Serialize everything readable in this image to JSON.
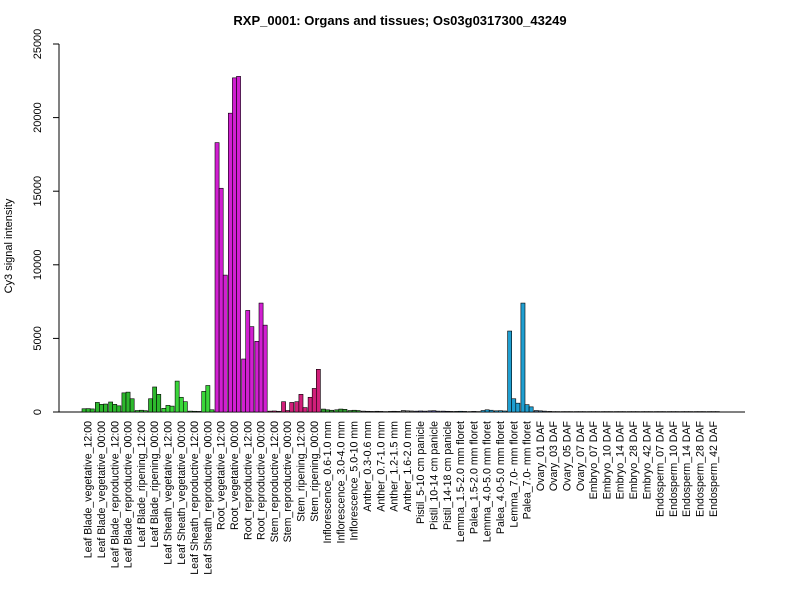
{
  "chart_data": {
    "type": "bar",
    "title": "RXP_0001: Organs and tissues; Os03g0317300_43249",
    "ylabel": "Cy3 signal intensity",
    "xlabel": "",
    "ylim": [
      0,
      25000
    ],
    "yticks": [
      0,
      5000,
      10000,
      15000,
      20000,
      25000
    ],
    "grid": false,
    "legend": "none",
    "categories": [
      "Leaf Blade_vegetative_12:00",
      "Leaf Blade_vegetative_00:00",
      "Leaf Blade_reproductive_12:00",
      "Leaf Blade_reproductive_00:00",
      "Leaf Blade_ripening_12:00",
      "Leaf Blade_ripening_00:00",
      "Leaf Sheath_vegetative_12:00",
      "Leaf Sheath_vegetative_00:00",
      "Leaf Sheath_reproductive_12:00",
      "Leaf Sheath_reproductive_00:00",
      "Root_vegetative_12:00",
      "Root_vegetative_00:00",
      "Root_reproductive_12:00",
      "Root_reproductive_00:00",
      "Stem_reproductive_12:00",
      "Stem_reproductive_00:00",
      "Stem_ripening_12:00",
      "Stem_ripening_00:00",
      "Inflorescence_0.6-1.0 mm",
      "Inflorescence_3.0-4.0 mm",
      "Inflorescence_5.0-10 mm",
      "Anther_0.3-0.6 mm",
      "Anther_0.7-1.0 mm",
      "Anther_1.2-1.5 mm",
      "Anther_1.6-2.0 mm",
      "Pistil_5-10 cm panicle",
      "Pistil_10-14 cm panicle",
      "Pistil_14-18 cm panicle",
      "Lemma_1.5-2.0 mm floret",
      "Palea_1.5-2.0 mm floret",
      "Lemma_4.0-5.0 mm floret",
      "Palea_4.0-5.0 mm floret",
      "Lemma_7.0- mm floret",
      "Palea_7.0- mm floret",
      "Ovary_01 DAF",
      "Ovary_03 DAF",
      "Ovary_05 DAF",
      "Ovary_07 DAF",
      "Embryo_07 DAF",
      "Embryo_10 DAF",
      "Embryo_14 DAF",
      "Embryo_28 DAF",
      "Embryo_42 DAF",
      "Endosperm_07 DAF",
      "Endosperm_10 DAF",
      "Endosperm_14 DAF",
      "Endosperm_28 DAF",
      "Endosperm_42 DAF"
    ],
    "values": [
      [
        220,
        230,
        210
      ],
      [
        650,
        520,
        540
      ],
      [
        680,
        520,
        420
      ],
      [
        1300,
        1350,
        900
      ],
      [
        100,
        120,
        90
      ],
      [
        900,
        1700,
        1200
      ],
      [
        250,
        450,
        400
      ],
      [
        2100,
        1000,
        700
      ],
      [
        60,
        50,
        40
      ],
      [
        1400,
        1800,
        150
      ],
      [
        18300,
        15200,
        9300
      ],
      [
        20300,
        22700,
        22800
      ],
      [
        3600,
        6900,
        5800
      ],
      [
        4800,
        7400,
        5900
      ],
      [
        60,
        70,
        50
      ],
      [
        700,
        100,
        650
      ],
      [
        700,
        1200,
        300
      ],
      [
        1000,
        1600,
        2900
      ],
      [
        200,
        150,
        120
      ],
      [
        150,
        200,
        180
      ],
      [
        100,
        120,
        100
      ],
      [
        60,
        50,
        40
      ],
      [
        50,
        40,
        30
      ],
      [
        40,
        50,
        40
      ],
      [
        100,
        80,
        70
      ],
      [
        60,
        70,
        60
      ],
      [
        80,
        90,
        60
      ],
      [
        60,
        50,
        40
      ],
      [
        40,
        50,
        40
      ],
      [
        30,
        40,
        30
      ],
      [
        100,
        150,
        120
      ],
      [
        80,
        90,
        70
      ],
      [
        5500,
        900,
        600
      ],
      [
        7400,
        500,
        350
      ],
      [
        100,
        80,
        60
      ],
      [
        40,
        30,
        30
      ],
      [
        30,
        30,
        30
      ],
      [
        30,
        30,
        30
      ],
      [
        30,
        30,
        30
      ],
      [
        30,
        30,
        30
      ],
      [
        30,
        30,
        30
      ],
      [
        30,
        30,
        30
      ],
      [
        30,
        30,
        30
      ],
      [
        30,
        30,
        30
      ],
      [
        30,
        30,
        30
      ],
      [
        30,
        30,
        30
      ],
      [
        30,
        30,
        30
      ],
      [
        30,
        30,
        30
      ]
    ],
    "colors": [
      "#2db82d",
      "#2db82d",
      "#2db82d",
      "#2db82d",
      "#2db82d",
      "#2db82d",
      "#3ad63a",
      "#3ad63a",
      "#3ad63a",
      "#3ad63a",
      "#d11fd1",
      "#d11fd1",
      "#d11fd1",
      "#d11fd1",
      "#d11f7a",
      "#d11f7a",
      "#d11f7a",
      "#d11f7a",
      "#2d9c2d",
      "#2d9c2d",
      "#2d9c2d",
      "#6e6e6e",
      "#6e6e6e",
      "#6e6e6e",
      "#6e6e6e",
      "#4a4a8c",
      "#4a4a8c",
      "#4a4a8c",
      "#1f9fd1",
      "#1f9fd1",
      "#1f9fd1",
      "#1f9fd1",
      "#1f9fd1",
      "#1f9fd1",
      "#4a6a8c",
      "#4a6a8c",
      "#4a6a8c",
      "#4a6a8c",
      "#5a5a5a",
      "#5a5a5a",
      "#5a5a5a",
      "#5a5a5a",
      "#5a5a5a",
      "#3a6a8a",
      "#3a6a8a",
      "#3a6a8a",
      "#3a6a8a",
      "#3a6a8a"
    ]
  }
}
